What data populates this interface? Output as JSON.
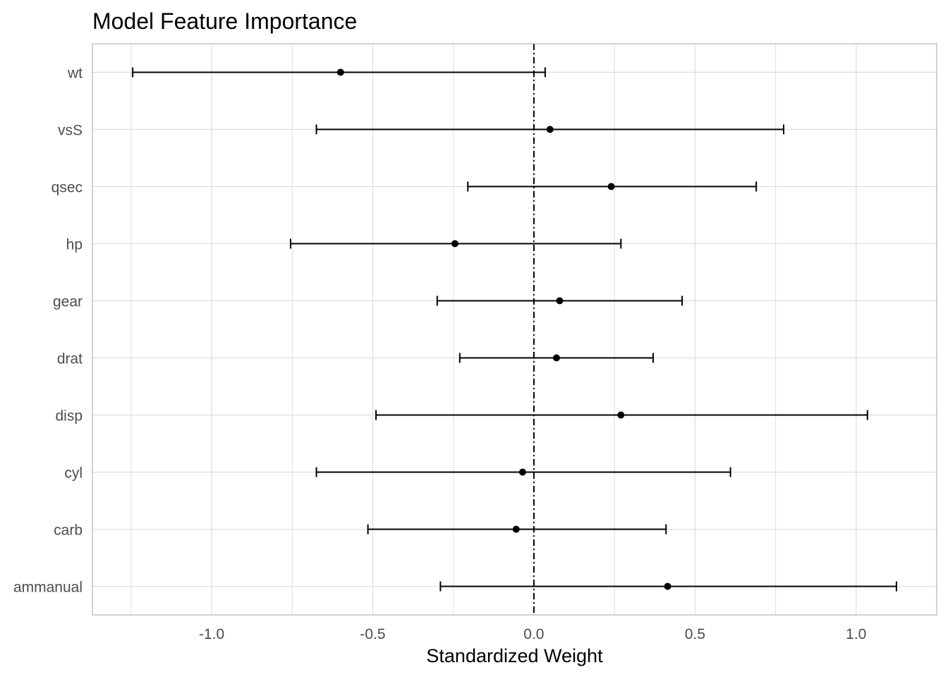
{
  "chart_data": {
    "type": "errorbar",
    "title": "Model Feature Importance",
    "xlabel": "Standardized Weight",
    "ylabel": "",
    "xlim": [
      -1.37,
      1.25
    ],
    "x_ticks": [
      -1.0,
      -0.5,
      0.0,
      0.5,
      1.0
    ],
    "x_tick_labels": [
      "-1.0",
      "-0.5",
      "0.0",
      "0.5",
      "1.0"
    ],
    "reference_line": {
      "x": 0.0,
      "style": "dot-dash"
    },
    "grid": true,
    "categories": [
      "wt",
      "vsS",
      "qsec",
      "hp",
      "gear",
      "drat",
      "disp",
      "cyl",
      "carb",
      "ammanual"
    ],
    "estimate": [
      -0.6,
      0.05,
      0.24,
      -0.245,
      0.08,
      0.07,
      0.27,
      -0.035,
      -0.055,
      0.415
    ],
    "lower": [
      -1.245,
      -0.675,
      -0.205,
      -0.755,
      -0.3,
      -0.23,
      -0.49,
      -0.675,
      -0.515,
      -0.29
    ],
    "upper": [
      0.035,
      0.775,
      0.69,
      0.27,
      0.46,
      0.37,
      1.035,
      0.61,
      0.41,
      1.125
    ],
    "colors": {
      "ink": "#000000",
      "grid": "#dedede",
      "panel_border": "#b3b3b3",
      "tick_text": "#4d4d4d"
    }
  }
}
